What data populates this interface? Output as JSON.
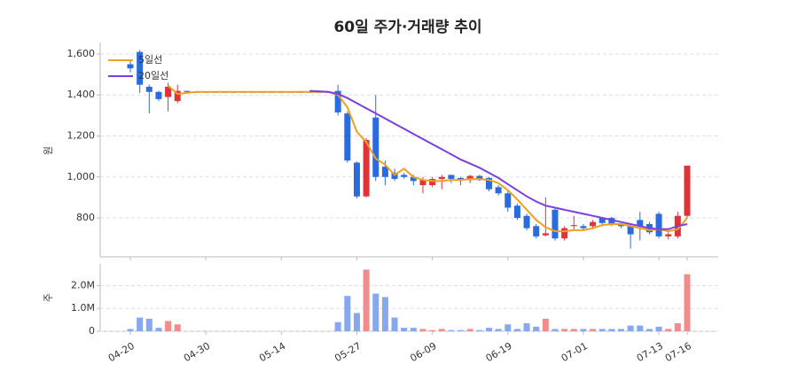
{
  "chart_data": [
    {
      "type": "candlestick",
      "title": "60일 주가·거래량 추이",
      "y_label": "원",
      "up_color": "#e0323a",
      "down_color": "#2b6be0",
      "ylim": [
        610,
        1656
      ],
      "yticks": [
        800,
        {
          "value": 1000,
          "label": "1,000"
        },
        {
          "value": 1200,
          "label": "1,200"
        },
        {
          "value": 1400,
          "label": "1,400"
        },
        {
          "value": 1600,
          "label": "1,600"
        }
      ],
      "grid": true,
      "legend": "upper left",
      "open": [
        1550,
        1610,
        1440,
        1415,
        1390,
        1370,
        1420,
        1415,
        1415,
        1415,
        1415,
        1415,
        1415,
        1415,
        1415,
        1415,
        1415,
        1415,
        1415,
        1415,
        1415,
        1415,
        1420,
        1310,
        1070,
        905,
        1290,
        1050,
        1020,
        1010,
        1000,
        960,
        960,
        990,
        1010,
        995,
        985,
        1005,
        995,
        950,
        920,
        860,
        810,
        760,
        715,
        840,
        700,
        760,
        760,
        760,
        800,
        800,
        770,
        760,
        790,
        770,
        820,
        710,
        710,
        810
      ],
      "high": [
        1570,
        1620,
        1450,
        1420,
        1460,
        1450,
        1420,
        1415,
        1415,
        1415,
        1415,
        1415,
        1415,
        1415,
        1415,
        1415,
        1415,
        1415,
        1415,
        1415,
        1415,
        1415,
        1450,
        1320,
        1075,
        1190,
        1400,
        1080,
        1040,
        1020,
        1010,
        1000,
        1000,
        1010,
        1010,
        1000,
        1010,
        1010,
        1000,
        960,
        930,
        870,
        820,
        770,
        900,
        845,
        760,
        810,
        770,
        790,
        800,
        805,
        775,
        770,
        830,
        780,
        830,
        730,
        830,
        1055
      ],
      "low": [
        1510,
        1410,
        1310,
        1370,
        1320,
        1360,
        1410,
        1415,
        1415,
        1415,
        1415,
        1415,
        1415,
        1415,
        1415,
        1415,
        1415,
        1415,
        1415,
        1415,
        1415,
        1415,
        1300,
        1070,
        895,
        900,
        980,
        960,
        980,
        990,
        960,
        920,
        950,
        940,
        970,
        960,
        970,
        980,
        930,
        910,
        830,
        790,
        740,
        700,
        710,
        690,
        690,
        740,
        740,
        750,
        760,
        760,
        750,
        650,
        690,
        720,
        700,
        695,
        700,
        800
      ],
      "close": [
        1530,
        1450,
        1415,
        1380,
        1440,
        1420,
        1415,
        1415,
        1415,
        1415,
        1415,
        1415,
        1415,
        1415,
        1415,
        1415,
        1415,
        1415,
        1415,
        1415,
        1415,
        1415,
        1315,
        1080,
        905,
        1180,
        1000,
        1000,
        990,
        1000,
        980,
        985,
        990,
        1000,
        990,
        985,
        1005,
        985,
        940,
        920,
        850,
        800,
        750,
        710,
        725,
        700,
        750,
        765,
        750,
        780,
        775,
        770,
        760,
        720,
        760,
        730,
        710,
        720,
        810,
        1055
      ],
      "series": [
        {
          "name": "5일선",
          "color": "#f0a020",
          "values": [
            null,
            null,
            null,
            null,
            1445,
            1405,
            1410,
            1415,
            1415,
            1415,
            1415,
            1415,
            1415,
            1415,
            1415,
            1415,
            1415,
            1415,
            1415,
            1415,
            1415,
            1415,
            1400,
            1340,
            1220,
            1170,
            1090,
            1060,
            1010,
            1040,
            1000,
            985,
            980,
            980,
            985,
            985,
            990,
            990,
            985,
            970,
            935,
            890,
            840,
            790,
            755,
            735,
            735,
            740,
            740,
            750,
            765,
            770,
            770,
            760,
            750,
            740,
            745,
            735,
            745,
            800
          ]
        },
        {
          "name": "20일선",
          "color": "#7b3fe0",
          "values": [
            null,
            null,
            null,
            null,
            null,
            null,
            null,
            null,
            null,
            null,
            null,
            null,
            null,
            null,
            null,
            null,
            null,
            null,
            null,
            1420,
            1418,
            1415,
            1405,
            1385,
            1360,
            1335,
            1310,
            1285,
            1260,
            1235,
            1210,
            1185,
            1160,
            1135,
            1110,
            1085,
            1065,
            1045,
            1020,
            995,
            965,
            935,
            905,
            880,
            860,
            850,
            840,
            830,
            820,
            810,
            800,
            790,
            780,
            770,
            760,
            750,
            745,
            745,
            760,
            770
          ]
        }
      ]
    },
    {
      "type": "bar",
      "y_label": "주",
      "up_color": "#f08c8c",
      "down_color": "#86a8f0",
      "ylim": [
        0,
        2950000
      ],
      "yticks": [
        0,
        {
          "value": 1000000,
          "label": "1.0M"
        },
        {
          "value": 2000000,
          "label": "2.0M"
        }
      ],
      "grid": true,
      "categories": [
        "04-20",
        null,
        null,
        null,
        null,
        null,
        null,
        null,
        "04-30",
        null,
        null,
        null,
        null,
        null,
        null,
        null,
        "05-14",
        null,
        null,
        null,
        null,
        null,
        null,
        null,
        "05-27",
        null,
        null,
        null,
        null,
        null,
        null,
        null,
        "06-09",
        null,
        null,
        null,
        null,
        null,
        null,
        null,
        "06-19",
        null,
        null,
        null,
        null,
        null,
        null,
        null,
        "07-01",
        null,
        null,
        null,
        null,
        null,
        null,
        null,
        "07-13",
        null,
        null,
        "07-16"
      ],
      "values": [
        100000,
        600000,
        550000,
        150000,
        450000,
        300000,
        0,
        0,
        0,
        0,
        0,
        0,
        0,
        0,
        0,
        0,
        0,
        0,
        0,
        0,
        0,
        0,
        400000,
        1550000,
        800000,
        2700000,
        1650000,
        1500000,
        600000,
        150000,
        150000,
        100000,
        50000,
        100000,
        50000,
        50000,
        100000,
        50000,
        150000,
        100000,
        300000,
        100000,
        350000,
        200000,
        550000,
        100000,
        100000,
        100000,
        100000,
        100000,
        100000,
        100000,
        100000,
        250000,
        250000,
        100000,
        200000,
        100000,
        350000,
        2500000
      ]
    }
  ]
}
